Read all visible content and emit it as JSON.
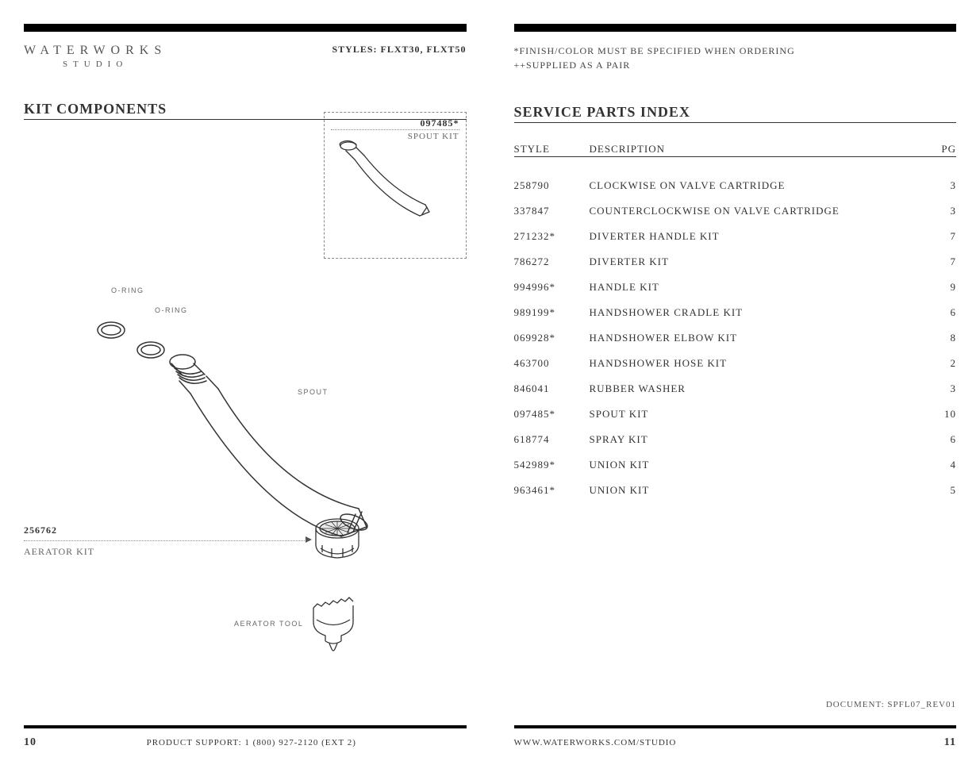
{
  "logo": {
    "main": "WATERWORKS",
    "sub": "STUDIO"
  },
  "styles_label": "STYLES: FLXT30, FLXT50",
  "left": {
    "title": "KIT COMPONENTS",
    "spout_kit": {
      "number": "097485*",
      "label": "SPOUT KIT"
    },
    "labels": {
      "oring": "O-RING",
      "spout": "SPOUT",
      "aerator_tool": "AERATOR TOOL"
    },
    "aerator_kit": {
      "number": "256762",
      "label": "AERATOR KIT"
    },
    "footer": {
      "page": "10",
      "support": "PRODUCT SUPPORT: 1 (800) 927-2120 (EXT 2)"
    }
  },
  "right": {
    "notes": {
      "finish": "*FINISH/COLOR MUST BE SPECIFIED WHEN ORDERING",
      "pair": "++SUPPLIED AS A PAIR"
    },
    "title": "SERVICE PARTS INDEX",
    "headers": {
      "style": "STYLE",
      "desc": "DESCRIPTION",
      "pg": "PG"
    },
    "rows": [
      {
        "style": "258790",
        "desc": "CLOCKWISE ON VALVE CARTRIDGE",
        "pg": "3"
      },
      {
        "style": "337847",
        "desc": "COUNTERCLOCKWISE ON VALVE CARTRIDGE",
        "pg": "3"
      },
      {
        "style": "271232*",
        "desc": "DIVERTER HANDLE KIT",
        "pg": "7"
      },
      {
        "style": "786272",
        "desc": "DIVERTER KIT",
        "pg": "7"
      },
      {
        "style": "994996*",
        "desc": "HANDLE KIT",
        "pg": "9"
      },
      {
        "style": "989199*",
        "desc": "HANDSHOWER CRADLE KIT",
        "pg": "6"
      },
      {
        "style": "069928*",
        "desc": "HANDSHOWER ELBOW KIT",
        "pg": "8"
      },
      {
        "style": "463700",
        "desc": "HANDSHOWER HOSE KIT",
        "pg": "2"
      },
      {
        "style": "846041",
        "desc": "RUBBER WASHER",
        "pg": "3"
      },
      {
        "style": "097485*",
        "desc": "SPOUT KIT",
        "pg": "10"
      },
      {
        "style": "618774",
        "desc": "SPRAY KIT",
        "pg": "6"
      },
      {
        "style": "542989*",
        "desc": "UNION KIT",
        "pg": "4"
      },
      {
        "style": "963461*",
        "desc": "UNION KIT",
        "pg": "5"
      }
    ],
    "doc_id": "DOCUMENT: SPFL07_REV01",
    "footer": {
      "page": "11",
      "url": "WWW.WATERWORKS.COM/STUDIO"
    }
  },
  "colors": {
    "text": "#333333",
    "muted": "#666666",
    "rule": "#000000",
    "dashed": "#888888"
  }
}
